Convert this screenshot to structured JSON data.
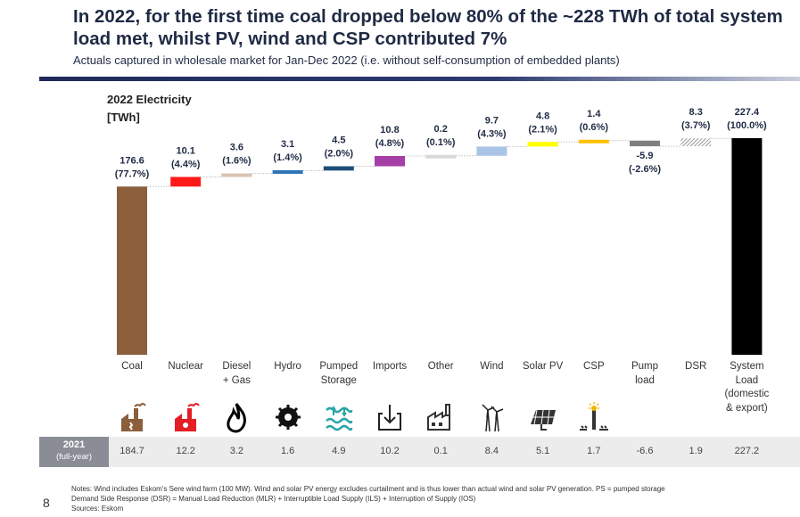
{
  "header": {
    "title": "In 2022, for the first time coal dropped below 80% of the ~228 TWh of total system load met, whilst PV, wind and CSP contributed 7%",
    "subtitle": "Actuals captured in wholesale market for Jan-Dec 2022 (i.e. without self-consumption of embedded plants)"
  },
  "chart_data": {
    "type": "bar",
    "subtype": "waterfall",
    "title": "2022 Electricity",
    "ylabel": "[TWh]",
    "ylim": [
      0,
      240
    ],
    "categories": [
      "Coal",
      "Nuclear",
      "Diesel + Gas",
      "Hydro",
      "Pumped Storage",
      "Imports",
      "Other",
      "Wind",
      "Solar PV",
      "CSP",
      "Pump load",
      "DSR",
      "System Load (domestic & export)"
    ],
    "values": [
      176.6,
      10.1,
      3.6,
      3.1,
      4.5,
      10.8,
      0.2,
      9.7,
      4.8,
      1.4,
      -5.9,
      8.3,
      227.4
    ],
    "value_labels": [
      "176.6",
      "10.1",
      "3.6",
      "3.1",
      "4.5",
      "10.8",
      "0.2",
      "9.7",
      "4.8",
      "1.4",
      "-5.9",
      "8.3",
      "227.4"
    ],
    "share_labels": [
      "(77.7%)",
      "(4.4%)",
      "(1.6%)",
      "(1.4%)",
      "(2.0%)",
      "(4.8%)",
      "(0.1%)",
      "(4.3%)",
      "(2.1%)",
      "(0.6%)",
      "(-2.6%)",
      "(3.7%)",
      "(100.0%)"
    ],
    "colors": [
      "#8b5e3c",
      "#ff1a1a",
      "#d9c3b0",
      "#2e75b6",
      "#1f4e79",
      "#a53ea5",
      "#d9d9d9",
      "#a9c4e4",
      "#ffff00",
      "#ffc000",
      "#7f7f7f",
      "#bfbfbf",
      "#000000"
    ],
    "totals": [
      true,
      false,
      false,
      false,
      false,
      false,
      false,
      false,
      false,
      false,
      false,
      false,
      true
    ],
    "grid": false
  },
  "categories_display": [
    {
      "line1": "Coal",
      "line2": "",
      "line3": "",
      "line4": ""
    },
    {
      "line1": "Nuclear",
      "line2": "",
      "line3": "",
      "line4": ""
    },
    {
      "line1": "Diesel",
      "line2": "+ Gas",
      "line3": "",
      "line4": ""
    },
    {
      "line1": "Hydro",
      "line2": "",
      "line3": "",
      "line4": ""
    },
    {
      "line1": "Pumped",
      "line2": "Storage",
      "line3": "",
      "line4": ""
    },
    {
      "line1": "Imports",
      "line2": "",
      "line3": "",
      "line4": ""
    },
    {
      "line1": "Other",
      "line2": "",
      "line3": "",
      "line4": ""
    },
    {
      "line1": "Wind",
      "line2": "",
      "line3": "",
      "line4": ""
    },
    {
      "line1": "Solar PV",
      "line2": "",
      "line3": "",
      "line4": ""
    },
    {
      "line1": "CSP",
      "line2": "",
      "line3": "",
      "line4": ""
    },
    {
      "line1": "Pump",
      "line2": "load",
      "line3": "",
      "line4": ""
    },
    {
      "line1": "DSR",
      "line2": "",
      "line3": "",
      "line4": ""
    },
    {
      "line1": "System",
      "line2": "Load",
      "line3": "(domestic",
      "line4": "& export)"
    }
  ],
  "icons": [
    "coal-plant-icon",
    "nuclear-plant-icon",
    "flame-icon",
    "hydro-icon",
    "pumped-storage-icon",
    "imports-icon",
    "other-factory-icon",
    "wind-turbine-icon",
    "solar-panel-icon",
    "csp-tower-icon"
  ],
  "year_band": {
    "label": "2021",
    "sublabel": "(full-year)",
    "values": [
      "184.7",
      "12.2",
      "3.2",
      "1.6",
      "4.9",
      "10.2",
      "0.1",
      "8.4",
      "5.1",
      "1.7",
      "-6.6",
      "1.9",
      "227.2"
    ]
  },
  "notes": {
    "line1": "Notes: Wind includes Eskom's Sere wind farm (100 MW). Wind and solar PV energy excludes curtailment and is thus lower than actual wind and solar PV generation. PS = pumped storage",
    "line2": "Demand Side Response (DSR) = Manual Load Reduction (MLR) + Interruptible Load Supply (ILS) + Interruption of Supply (IOS)",
    "line3": "Sources: Eskom"
  },
  "page_number": "8"
}
